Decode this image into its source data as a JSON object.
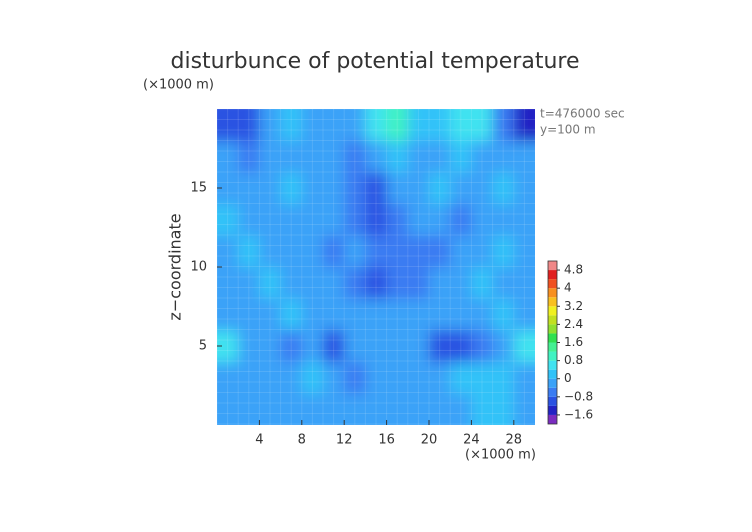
{
  "chart_data": {
    "type": "contour",
    "title": "disturbunce of potential temperature",
    "y_unit": "(×1000 m)",
    "x_unit": "(×1000 m)",
    "ylabel": "z−coordinate",
    "annotations": [
      "t=476000 sec",
      "y=100 m"
    ],
    "x": [
      1,
      3,
      5,
      7,
      9,
      11,
      13,
      15,
      17,
      19,
      21,
      23,
      25,
      27,
      29
    ],
    "z": [
      1,
      3,
      5,
      7,
      9,
      11,
      13,
      15,
      17,
      19
    ],
    "values": [
      [
        -0.2,
        -0.4,
        -0.4,
        -0.2,
        -0.4,
        -0.2,
        -0.4,
        -0.4,
        -0.2,
        -0.2,
        -0.4,
        -0.2,
        0,
        0.2,
        -0.2
      ],
      [
        -0.2,
        -0.4,
        -0.2,
        -0.2,
        0,
        -0.4,
        -0.6,
        -0.4,
        -0.2,
        -0.4,
        -0.2,
        0,
        0.2,
        0.4,
        -0.2
      ],
      [
        0.8,
        -0.4,
        -0.2,
        -0.6,
        -0.4,
        -0.8,
        -0.4,
        -0.2,
        -0.4,
        -0.4,
        -0.8,
        -1.0,
        -0.6,
        -0.4,
        0.8
      ],
      [
        -0.2,
        -0.4,
        -0.2,
        0,
        -0.2,
        -0.4,
        -0.2,
        -0.4,
        -0.4,
        -0.2,
        -0.4,
        -0.2,
        -0.2,
        0,
        -0.2
      ],
      [
        -0.2,
        -0.2,
        0,
        -0.2,
        -0.2,
        -0.4,
        -0.6,
        -0.8,
        -0.6,
        -0.6,
        -0.4,
        -0.2,
        0,
        -0.2,
        -0.2
      ],
      [
        -0.2,
        0,
        -0.4,
        -0.2,
        -0.4,
        -0.6,
        -0.4,
        -0.6,
        -0.6,
        -0.6,
        -0.6,
        -0.4,
        -0.2,
        0,
        -0.2
      ],
      [
        0,
        -0.2,
        -0.2,
        -0.4,
        -0.2,
        -0.4,
        -0.6,
        -0.8,
        -0.6,
        -0.4,
        -0.2,
        -0.6,
        -0.2,
        -0.2,
        -0.2
      ],
      [
        -0.2,
        -0.2,
        -0.4,
        0,
        -0.2,
        -0.2,
        -0.6,
        -0.8,
        -0.4,
        -0.2,
        0,
        -0.4,
        -0.2,
        0,
        -0.2
      ],
      [
        -0.2,
        -0.6,
        -0.2,
        -0.4,
        -0.2,
        -0.4,
        -0.6,
        -0.4,
        0.2,
        -0.2,
        -0.2,
        0,
        -0.2,
        -0.4,
        -0.2
      ],
      [
        -1.2,
        -0.8,
        -0.2,
        0.2,
        -0.4,
        -0.4,
        -0.2,
        0.8,
        1.0,
        0.2,
        0.4,
        0.6,
        0.6,
        -0.6,
        -1.4
      ]
    ],
    "xlim": [
      0,
      30
    ],
    "ylim": [
      0,
      20
    ],
    "xticks": [
      4,
      8,
      12,
      16,
      20,
      24,
      28
    ],
    "yticks": [
      5,
      10,
      15
    ],
    "clim": [
      -2,
      5.2
    ],
    "colors": [
      "#7a2cc0",
      "#2222c4",
      "#2a52e2",
      "#3a7cf2",
      "#3aa2f8",
      "#30c2f8",
      "#40e2f0",
      "#40f2c2",
      "#44f092",
      "#30e050",
      "#90e030",
      "#c2e020",
      "#f0f020",
      "#f8c020",
      "#f89020",
      "#f05020",
      "#e02020",
      "#f08888"
    ],
    "cticks": [
      {
        "value": -1.6,
        "label": "−1.6"
      },
      {
        "value": -0.8,
        "label": "−0.8"
      },
      0,
      0.8,
      1.6,
      2.4,
      3.2,
      4,
      4.8
    ]
  }
}
